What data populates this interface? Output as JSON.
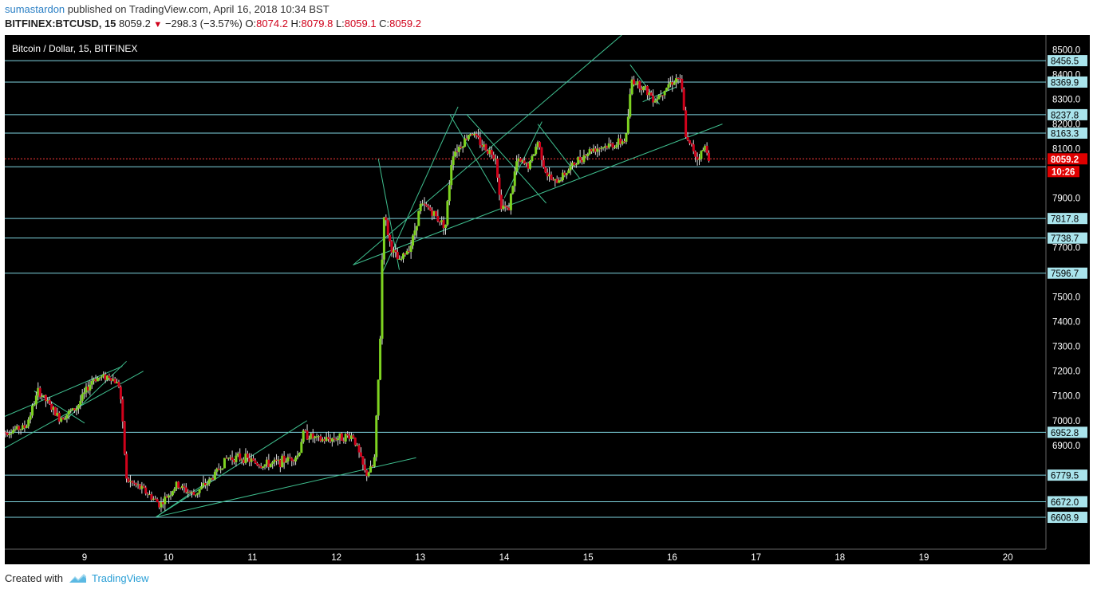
{
  "header": {
    "author": "sumastardon",
    "published_text": "published on TradingView.com, April 16, 2018 10:34 BST",
    "symbol": "BITFINEX:BTCUSD, 15",
    "last": "8059.2",
    "change": "−298.3 (−3.57%)",
    "o_label": "O:",
    "o_value": "8074.2",
    "h_label": "H:",
    "h_value": "8079.8",
    "l_label": "L:",
    "l_value": "8059.1",
    "c_label": "C:",
    "c_value": "8059.2"
  },
  "footer": {
    "created_with": "Created with",
    "brand": "TradingView"
  },
  "colors": {
    "background": "#000000",
    "hline": "#7fd4df",
    "trendline": "#3fbf8f",
    "candle_up": "#7ed321",
    "candle_down": "#d0021b",
    "price_badge": "#e00000",
    "label_bg": "#a9e4ec"
  },
  "chart_data": {
    "type": "candlestick",
    "title": "Bitcoin / Dollar, 15, BITFINEX",
    "xlabel": "",
    "ylabel": "",
    "x_ticks": [
      "9",
      "10",
      "11",
      "12",
      "13",
      "14",
      "15",
      "16",
      "17",
      "18",
      "19",
      "20"
    ],
    "y_ticks": [
      "8500.0",
      "8400.0",
      "8300.0",
      "8200.0",
      "8100.0",
      "7900.0",
      "7700.0",
      "7500.0",
      "7400.0",
      "7300.0",
      "7200.0",
      "7100.0",
      "7000.0",
      "6900.0"
    ],
    "ylim": [
      6480,
      8560
    ],
    "last_price": "8059.2",
    "countdown": "10:26",
    "horizontal_levels": [
      "8456.5",
      "8369.9",
      "8237.8",
      "8163.3",
      "8059.2",
      "7817.8",
      "7738.7",
      "7596.7",
      "6952.8",
      "6779.5",
      "6672.0",
      "6608.9"
    ],
    "price_path": [
      {
        "day": 8.0,
        "price": 6950
      },
      {
        "day": 8.3,
        "price": 6975
      },
      {
        "day": 8.45,
        "price": 7120
      },
      {
        "day": 8.7,
        "price": 7010
      },
      {
        "day": 8.9,
        "price": 7050
      },
      {
        "day": 9.1,
        "price": 7170
      },
      {
        "day": 9.3,
        "price": 7180
      },
      {
        "day": 9.42,
        "price": 7140
      },
      {
        "day": 9.5,
        "price": 6760
      },
      {
        "day": 9.7,
        "price": 6720
      },
      {
        "day": 9.9,
        "price": 6660
      },
      {
        "day": 10.1,
        "price": 6740
      },
      {
        "day": 10.3,
        "price": 6700
      },
      {
        "day": 10.5,
        "price": 6760
      },
      {
        "day": 10.7,
        "price": 6850
      },
      {
        "day": 10.9,
        "price": 6850
      },
      {
        "day": 11.1,
        "price": 6820
      },
      {
        "day": 11.3,
        "price": 6830
      },
      {
        "day": 11.55,
        "price": 6860
      },
      {
        "day": 11.6,
        "price": 6950
      },
      {
        "day": 11.8,
        "price": 6920
      },
      {
        "day": 12.0,
        "price": 6930
      },
      {
        "day": 12.2,
        "price": 6940
      },
      {
        "day": 12.35,
        "price": 6780
      },
      {
        "day": 12.45,
        "price": 6820
      },
      {
        "day": 12.52,
        "price": 7300
      },
      {
        "day": 12.56,
        "price": 7850
      },
      {
        "day": 12.65,
        "price": 7700
      },
      {
        "day": 12.75,
        "price": 7640
      },
      {
        "day": 12.9,
        "price": 7720
      },
      {
        "day": 13.0,
        "price": 7870
      },
      {
        "day": 13.1,
        "price": 7860
      },
      {
        "day": 13.2,
        "price": 7820
      },
      {
        "day": 13.3,
        "price": 7790
      },
      {
        "day": 13.38,
        "price": 8080
      },
      {
        "day": 13.5,
        "price": 8120
      },
      {
        "day": 13.6,
        "price": 8170
      },
      {
        "day": 13.75,
        "price": 8110
      },
      {
        "day": 13.9,
        "price": 8070
      },
      {
        "day": 13.95,
        "price": 7880
      },
      {
        "day": 14.05,
        "price": 7850
      },
      {
        "day": 14.15,
        "price": 8050
      },
      {
        "day": 14.3,
        "price": 8030
      },
      {
        "day": 14.4,
        "price": 8130
      },
      {
        "day": 14.5,
        "price": 8000
      },
      {
        "day": 14.6,
        "price": 7960
      },
      {
        "day": 14.75,
        "price": 8010
      },
      {
        "day": 14.9,
        "price": 8060
      },
      {
        "day": 15.05,
        "price": 8100
      },
      {
        "day": 15.2,
        "price": 8110
      },
      {
        "day": 15.35,
        "price": 8120
      },
      {
        "day": 15.45,
        "price": 8140
      },
      {
        "day": 15.52,
        "price": 8380
      },
      {
        "day": 15.65,
        "price": 8350
      },
      {
        "day": 15.8,
        "price": 8300
      },
      {
        "day": 15.95,
        "price": 8360
      },
      {
        "day": 16.08,
        "price": 8390
      },
      {
        "day": 16.12,
        "price": 8330
      },
      {
        "day": 16.17,
        "price": 8130
      },
      {
        "day": 16.25,
        "price": 8100
      },
      {
        "day": 16.3,
        "price": 8060
      },
      {
        "day": 16.4,
        "price": 8110
      },
      {
        "day": 16.45,
        "price": 8059
      }
    ]
  }
}
